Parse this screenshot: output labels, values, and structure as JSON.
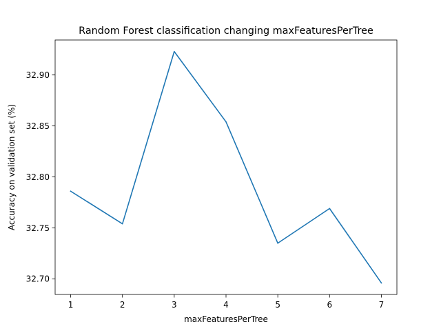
{
  "chart_data": {
    "type": "line",
    "title": "Random Forest classification changing maxFeaturesPerTree",
    "xlabel": "maxFeaturesPerTree",
    "ylabel": "Accuracy on validation set (%)",
    "x": [
      1,
      2,
      3,
      4,
      5,
      6,
      7
    ],
    "series": [
      {
        "values": [
          32.786,
          32.754,
          32.923,
          32.854,
          32.735,
          32.769,
          32.696
        ],
        "color": "#1f77b4"
      }
    ],
    "xlim": [
      0.7,
      7.3
    ],
    "ylim": [
      32.6847,
      32.9343
    ],
    "x_ticks": [
      1,
      2,
      3,
      4,
      5,
      6,
      7
    ],
    "x_tick_labels": [
      "1",
      "2",
      "3",
      "4",
      "5",
      "6",
      "7"
    ],
    "y_ticks": [
      32.7,
      32.75,
      32.8,
      32.85,
      32.9
    ],
    "y_tick_labels": [
      "32.70",
      "32.75",
      "32.80",
      "32.85",
      "32.90"
    ],
    "grid": false,
    "legend": "none"
  }
}
